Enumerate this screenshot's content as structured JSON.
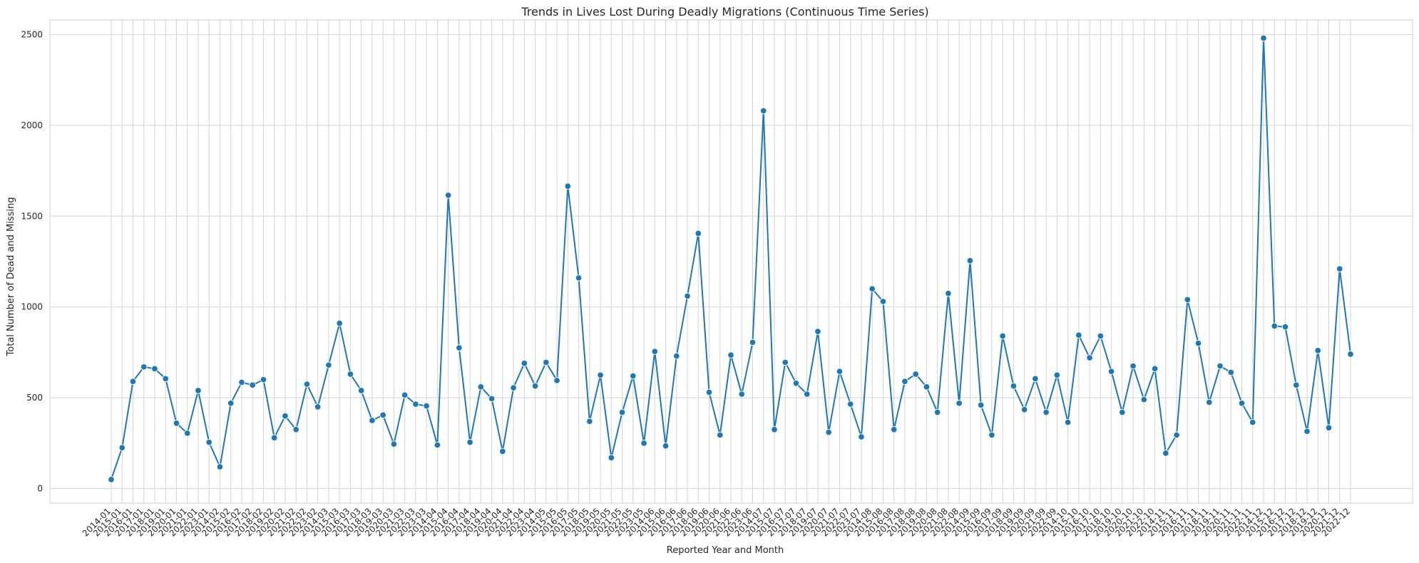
{
  "chart_data": {
    "type": "line",
    "title": "Trends in Lives Lost During Deadly Migrations (Continuous Time Series)",
    "xlabel": "Reported Year and Month",
    "ylabel": "Total Number of Dead and Missing",
    "ylim": [
      -80,
      2580
    ],
    "yticks": [
      0,
      500,
      1000,
      1500,
      2000,
      2500
    ],
    "grid": true,
    "legend": "none",
    "marker": "circle",
    "categories": [
      "2014-01",
      "2015-01",
      "2016-01",
      "2017-01",
      "2018-01",
      "2019-01",
      "2020-01",
      "2021-01",
      "2022-01",
      "2023-01",
      "2014-02",
      "2015-02",
      "2016-02",
      "2017-02",
      "2018-02",
      "2019-02",
      "2020-02",
      "2021-02",
      "2022-02",
      "2023-02",
      "2014-03",
      "2015-03",
      "2016-03",
      "2017-03",
      "2018-03",
      "2019-03",
      "2020-03",
      "2021-03",
      "2022-03",
      "2023-03",
      "2014-04",
      "2015-04",
      "2016-04",
      "2017-04",
      "2018-04",
      "2019-04",
      "2020-04",
      "2021-04",
      "2022-04",
      "2023-04",
      "2014-05",
      "2015-05",
      "2016-05",
      "2017-05",
      "2018-05",
      "2019-05",
      "2020-05",
      "2021-05",
      "2022-05",
      "2023-05",
      "2014-06",
      "2015-06",
      "2016-06",
      "2017-06",
      "2018-06",
      "2019-06",
      "2020-06",
      "2021-06",
      "2022-06",
      "2023-06",
      "2014-07",
      "2015-07",
      "2016-07",
      "2017-07",
      "2018-07",
      "2019-07",
      "2020-07",
      "2021-07",
      "2022-07",
      "2023-07",
      "2014-08",
      "2015-08",
      "2016-08",
      "2017-08",
      "2018-08",
      "2019-08",
      "2020-08",
      "2021-08",
      "2022-08",
      "2014-09",
      "2015-09",
      "2016-09",
      "2017-09",
      "2018-09",
      "2019-09",
      "2020-09",
      "2021-09",
      "2022-09",
      "2014-10",
      "2015-10",
      "2016-10",
      "2017-10",
      "2018-10",
      "2019-10",
      "2020-10",
      "2021-10",
      "2022-10",
      "2014-11",
      "2015-11",
      "2016-11",
      "2017-11",
      "2018-11",
      "2019-11",
      "2020-11",
      "2021-11",
      "2022-11",
      "2014-12",
      "2015-12",
      "2016-12",
      "2017-12",
      "2018-12",
      "2019-12",
      "2020-12",
      "2021-12",
      "2022-12"
    ],
    "series": [
      {
        "color": "#1f77b4",
        "values": [
          50,
          225,
          590,
          670,
          660,
          605,
          360,
          305,
          540,
          255,
          120,
          470,
          585,
          570,
          600,
          280,
          400,
          325,
          575,
          450,
          680,
          910,
          630,
          540,
          375,
          405,
          245,
          515,
          465,
          455,
          240,
          1615,
          775,
          255,
          560,
          495,
          205,
          555,
          690,
          565,
          695,
          595,
          1665,
          1160,
          370,
          625,
          170,
          420,
          620,
          250,
          755,
          235,
          730,
          1060,
          1405,
          530,
          295,
          735,
          520,
          805,
          2080,
          325,
          695,
          580,
          520,
          865,
          310,
          645,
          465,
          285,
          1100,
          1030,
          325,
          590,
          630,
          560,
          420,
          1075,
          470,
          1255,
          460,
          295,
          840,
          565,
          435,
          605,
          420,
          625,
          365,
          845,
          720,
          840,
          645,
          420,
          675,
          490,
          660,
          195,
          295,
          1040,
          800,
          475,
          675,
          640,
          470,
          365,
          2480,
          895,
          890,
          570,
          315,
          760,
          335,
          1210,
          740
        ]
      }
    ]
  }
}
